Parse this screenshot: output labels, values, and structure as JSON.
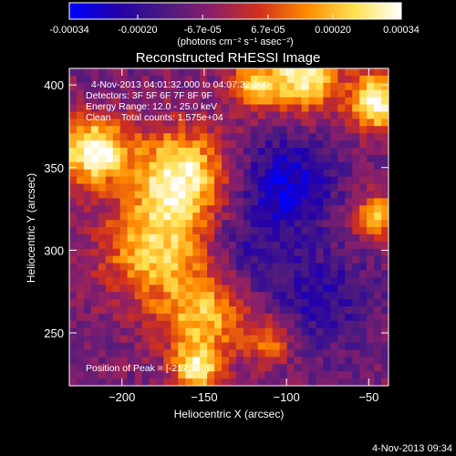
{
  "chart_data": {
    "type": "heatmap",
    "title": "Reconstructed RHESSI Image",
    "xlabel": "Heliocentric X (arcsec)",
    "ylabel": "Heliocentric Y (arcsec)",
    "xlim": [
      -232,
      -38
    ],
    "ylim": [
      218,
      410
    ],
    "x_ticks": [
      -200,
      -150,
      -100,
      -50
    ],
    "y_ticks": [
      250,
      300,
      350,
      400
    ],
    "colorbar": {
      "range": [
        -0.00034,
        0.00034
      ],
      "tick_values": [
        -0.00034,
        -0.0002,
        -6.7e-05,
        6.7e-05,
        0.0002,
        0.00034
      ],
      "tick_labels": [
        "-0.00034",
        "-0.00020",
        "-6.7e-05",
        "6.7e-05",
        "0.00020",
        "0.00034"
      ],
      "unit_label": "(photons cm⁻² s⁻¹ asec⁻²)",
      "colors": [
        "#0000ff",
        "#2200aa",
        "#4a1a80",
        "#8a1f6a",
        "#d0301c",
        "#ff8a00",
        "#ffe050",
        "#ffffff"
      ]
    },
    "annotations": {
      "time_range": "4-Nov-2013 04:01:32.000 to 04:07:32.000",
      "detectors": "Detectors: 3F 5F 6F 7F 8F 9F",
      "energy_range": "Energy Range: 12.0 - 25.0 keV",
      "clean_counts": "Clean    Total counts: 1.575e+04",
      "peak": "Position of Peak = [-217,360]"
    },
    "peak_position": [
      -217,
      360
    ],
    "hot_spots": [
      {
        "x": -217,
        "y": 360,
        "value": 0.00034,
        "sigma": 14
      },
      {
        "x": -165,
        "y": 345,
        "value": 0.0003,
        "sigma": 20
      },
      {
        "x": -180,
        "y": 300,
        "value": 0.00022,
        "sigma": 22
      },
      {
        "x": -150,
        "y": 260,
        "value": 0.0002,
        "sigma": 18
      },
      {
        "x": -155,
        "y": 228,
        "value": 0.00026,
        "sigma": 10
      },
      {
        "x": -90,
        "y": 405,
        "value": 0.00032,
        "sigma": 14
      },
      {
        "x": -45,
        "y": 390,
        "value": 0.00034,
        "sigma": 12
      },
      {
        "x": -120,
        "y": 400,
        "value": 0.00022,
        "sigma": 10
      },
      {
        "x": -45,
        "y": 320,
        "value": 0.0002,
        "sigma": 10
      },
      {
        "x": -110,
        "y": 245,
        "value": 0.00012,
        "sigma": 10
      }
    ],
    "cold_spots": [
      {
        "x": -100,
        "y": 340,
        "value": -0.0003,
        "sigma": 20
      },
      {
        "x": -80,
        "y": 270,
        "value": -0.00022,
        "sigma": 22
      },
      {
        "x": -125,
        "y": 300,
        "value": -0.00018,
        "sigma": 18
      }
    ],
    "background": -8e-05
  },
  "footer_timestamp": "4-Nov-2013 09:34"
}
